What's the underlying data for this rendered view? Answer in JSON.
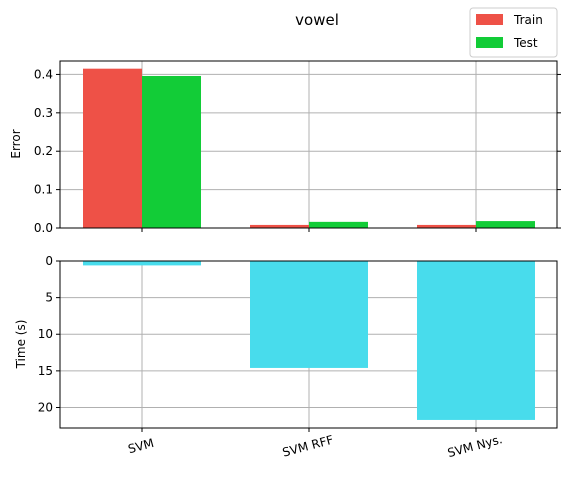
{
  "chart_data": [
    {
      "type": "bar",
      "title": "vowel",
      "ylabel": "Error",
      "xlabel": "",
      "categories": [
        "SVM",
        "SVM RFF",
        "SVM Nys."
      ],
      "series": [
        {
          "name": "Train",
          "color": "#ee5147",
          "values": [
            0.415,
            0.008,
            0.008
          ]
        },
        {
          "name": "Test",
          "color": "#12cc37",
          "values": [
            0.396,
            0.016,
            0.018
          ]
        }
      ],
      "ylim": [
        0,
        0.435
      ],
      "yticks": [
        "0.0",
        "0.1",
        "0.2",
        "0.3",
        "0.4"
      ],
      "grid": true,
      "legend": "top-right"
    },
    {
      "type": "bar",
      "ylabel": "Time (s)",
      "xlabel": "",
      "categories": [
        "SVM",
        "SVM RFF",
        "SVM Nys."
      ],
      "series": [
        {
          "color": "#48dcec",
          "values": [
            0.6,
            14.6,
            21.7
          ]
        }
      ],
      "ylim": [
        0,
        22.8
      ],
      "inverted": true,
      "yticks": [
        "0",
        "5",
        "10",
        "15",
        "20"
      ],
      "grid": true
    }
  ]
}
